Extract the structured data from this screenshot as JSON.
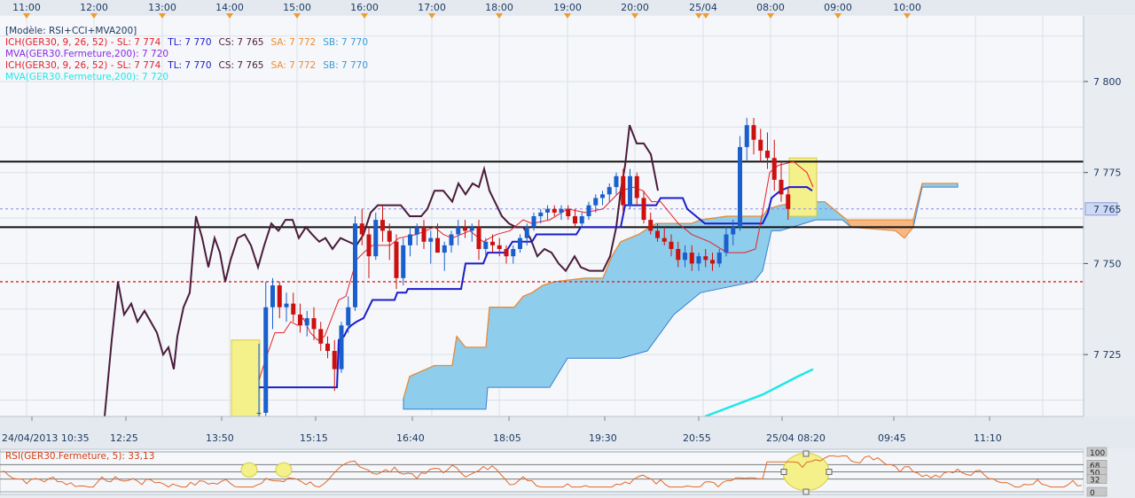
{
  "chart_data": {
    "type": "candlestick",
    "instrument": "GER30",
    "title": "[Modèle: RSI+CCI+MVA200]",
    "top_time_ticks": [
      "11:00",
      "12:00",
      "13:00",
      "14:00",
      "15:00",
      "16:00",
      "17:00",
      "18:00",
      "19:00",
      "20:00",
      "25/04",
      "08:00",
      "09:00",
      "10:00"
    ],
    "bottom_time_ticks": [
      "24/04/2013 10:35",
      "12:25",
      "13:50",
      "15:15",
      "16:40",
      "18:05",
      "19:30",
      "20:55",
      "25/04 08:20",
      "09:45",
      "11:10"
    ],
    "y_ticks": [
      "7 800",
      "7 775",
      "7 750",
      "7 725"
    ],
    "y_tick_values": [
      7800,
      7775,
      7750,
      7725
    ],
    "ylim": [
      7708,
      7818
    ],
    "current_price_label": "7 765",
    "current_price": 7765,
    "legend": [
      {
        "parts": [
          {
            "text": "ICH(GER30, 9, 26, 52) -  SL: 7 774",
            "color": "#e8202a"
          },
          {
            "text": "TL: 7 770",
            "color": "#1c1ccc"
          },
          {
            "text": "CS: 7 765",
            "color": "#4a1c3a"
          },
          {
            "text": "SA: 7 772",
            "color": "#f28a2e"
          },
          {
            "text": "SB: 7 770",
            "color": "#3a9bd6"
          }
        ]
      },
      {
        "parts": [
          {
            "text": "MVA(GER30.Fermeture,200): 7 720",
            "color": "#8a2be2"
          }
        ]
      },
      {
        "parts": [
          {
            "text": "ICH(GER30, 9, 26, 52) -  SL: 7 774",
            "color": "#e8202a"
          },
          {
            "text": "TL: 7 770",
            "color": "#1c1ccc"
          },
          {
            "text": "CS: 7 765",
            "color": "#4a1c3a"
          },
          {
            "text": "SA: 7 772",
            "color": "#f28a2e"
          },
          {
            "text": "SB: 7 770",
            "color": "#3a9bd6"
          }
        ]
      },
      {
        "parts": [
          {
            "text": "MVA(GER30.Fermeture,200): 7 720",
            "color": "#22e6e6"
          }
        ]
      }
    ],
    "horizontal_levels": [
      {
        "value": 7778,
        "style": "solid",
        "color": "#111111"
      },
      {
        "value": 7760,
        "style": "solid",
        "color": "#111111"
      },
      {
        "value": 7745,
        "style": "dotted",
        "color": "#e02020"
      },
      {
        "value": 7765,
        "style": "dashed",
        "color": "#8a8ae6"
      }
    ],
    "candles": [
      [
        7709,
        7728,
        7706,
        7709
      ],
      [
        7709,
        7745,
        7708,
        7738
      ],
      [
        7738,
        7746,
        7732,
        7744
      ],
      [
        7744,
        7745,
        7735,
        7738
      ],
      [
        7738,
        7742,
        7734,
        7739
      ],
      [
        7739,
        7742,
        7734,
        7736
      ],
      [
        7736,
        7739,
        7731,
        7733
      ],
      [
        7733,
        7737,
        7730,
        7735
      ],
      [
        7735,
        7738,
        7729,
        7732
      ],
      [
        7732,
        7734,
        7726,
        7728
      ],
      [
        7728,
        7730,
        7724,
        7726
      ],
      [
        7726,
        7729,
        7715,
        7721
      ],
      [
        7721,
        7734,
        7720,
        7733
      ],
      [
        7733,
        7741,
        7731,
        7738
      ],
      [
        7738,
        7763,
        7737,
        7761
      ],
      [
        7761,
        7765,
        7755,
        7758
      ],
      [
        7758,
        7760,
        7746,
        7752
      ],
      [
        7752,
        7764,
        7751,
        7762
      ],
      [
        7762,
        7766,
        7756,
        7759
      ],
      [
        7759,
        7761,
        7751,
        7756
      ],
      [
        7756,
        7758,
        7743,
        7746
      ],
      [
        7746,
        7757,
        7744,
        7755
      ],
      [
        7755,
        7760,
        7752,
        7758
      ],
      [
        7758,
        7761,
        7755,
        7760
      ],
      [
        7760,
        7762,
        7754,
        7756
      ],
      [
        7756,
        7759,
        7750,
        7757
      ],
      [
        7757,
        7761,
        7754,
        7753
      ],
      [
        7753,
        7756,
        7748,
        7755
      ],
      [
        7755,
        7759,
        7753,
        7758
      ],
      [
        7758,
        7762,
        7755,
        7760
      ],
      [
        7760,
        7762,
        7757,
        7759
      ],
      [
        7759,
        7761,
        7756,
        7760
      ],
      [
        7760,
        7762,
        7751,
        7754
      ],
      [
        7754,
        7757,
        7752,
        7756
      ],
      [
        7756,
        7758,
        7753,
        7755
      ],
      [
        7755,
        7757,
        7752,
        7754
      ],
      [
        7754,
        7755,
        7750,
        7752
      ],
      [
        7752,
        7755,
        7750,
        7754
      ],
      [
        7754,
        7758,
        7753,
        7757
      ],
      [
        7757,
        7761,
        7755,
        7760
      ],
      [
        7760,
        7764,
        7759,
        7763
      ],
      [
        7763,
        7765,
        7761,
        7764
      ],
      [
        7764,
        7766,
        7762,
        7765
      ],
      [
        7765,
        7766,
        7763,
        7764
      ],
      [
        7764,
        7766,
        7762,
        7765
      ],
      [
        7765,
        7766,
        7762,
        7763
      ],
      [
        7763,
        7765,
        7760,
        7761
      ],
      [
        7761,
        7764,
        7760,
        7763
      ],
      [
        7763,
        7767,
        7762,
        7766
      ],
      [
        7766,
        7769,
        7764,
        7768
      ],
      [
        7768,
        7770,
        7766,
        7769
      ],
      [
        7769,
        7772,
        7767,
        7771
      ],
      [
        7771,
        7775,
        7769,
        7774
      ],
      [
        7774,
        7776,
        7764,
        7766
      ],
      [
        7766,
        7776,
        7765,
        7774
      ],
      [
        7774,
        7775,
        7766,
        7768
      ],
      [
        7768,
        7770,
        7761,
        7762
      ],
      [
        7762,
        7764,
        7758,
        7759
      ],
      [
        7759,
        7761,
        7756,
        7757
      ],
      [
        7757,
        7760,
        7755,
        7756
      ],
      [
        7756,
        7758,
        7752,
        7754
      ],
      [
        7754,
        7756,
        7749,
        7751
      ],
      [
        7751,
        7755,
        7749,
        7753
      ],
      [
        7753,
        7755,
        7748,
        7750
      ],
      [
        7750,
        7753,
        7748,
        7752
      ],
      [
        7752,
        7754,
        7749,
        7751
      ],
      [
        7751,
        7753,
        7748,
        7750
      ],
      [
        7750,
        7754,
        7749,
        7753
      ],
      [
        7753,
        7760,
        7752,
        7758
      ],
      [
        7758,
        7762,
        7755,
        7760
      ],
      [
        7760,
        7785,
        7759,
        7782
      ],
      [
        7782,
        7790,
        7778,
        7788
      ],
      [
        7788,
        7790,
        7780,
        7784
      ],
      [
        7784,
        7787,
        7778,
        7781
      ],
      [
        7781,
        7786,
        7776,
        7779
      ],
      [
        7779,
        7784,
        7770,
        7773
      ],
      [
        7773,
        7778,
        7767,
        7769
      ],
      [
        7769,
        7771,
        7762,
        7765
      ]
    ],
    "rsi": {
      "label": "RSI(GER30.Fermeture, 5): 33,13",
      "levels_labels": [
        "100",
        "68",
        "50",
        "32",
        "0"
      ],
      "levels": [
        100,
        68,
        50,
        32,
        0
      ],
      "color": "#e06a2a"
    }
  }
}
